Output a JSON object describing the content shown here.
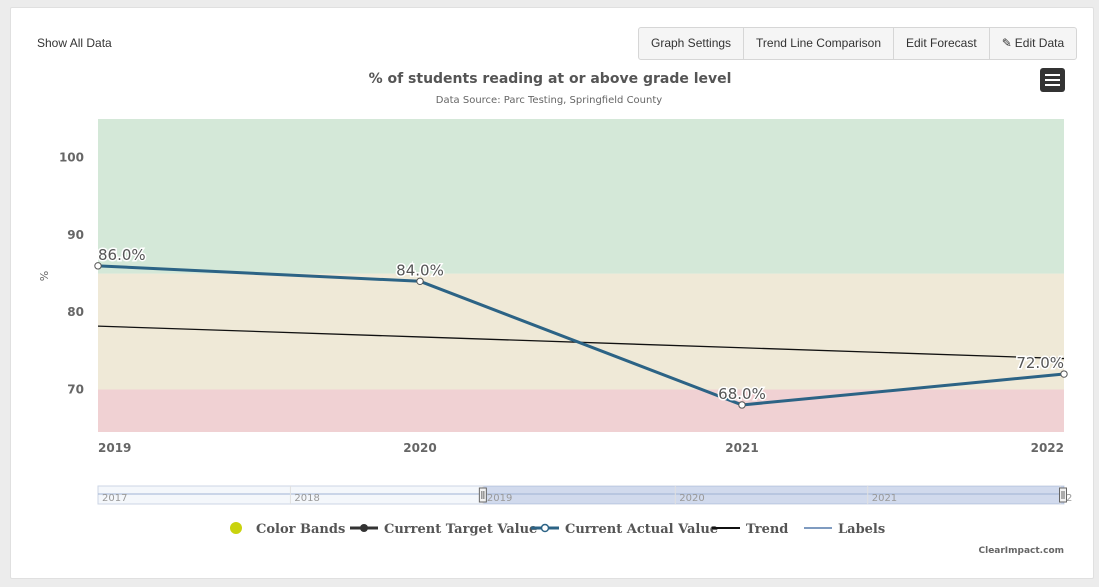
{
  "toolbar": {
    "show_all": "Show All Data",
    "buttons": [
      "Graph Settings",
      "Trend Line Comparison",
      "Edit Forecast",
      "Edit Data"
    ]
  },
  "chart_data": {
    "type": "line",
    "title": "% of students reading at or above grade level",
    "subtitle": "Data Source: Parc Testing, Springfield County",
    "ylabel": "%",
    "xlabel": "",
    "ylim": [
      64.5,
      105
    ],
    "y_ticks": [
      70,
      80,
      90,
      100
    ],
    "x": [
      "2019",
      "2020",
      "2021",
      "2022"
    ],
    "color_bands": [
      {
        "from": 64.5,
        "to": 70,
        "color": "#f0d1d3"
      },
      {
        "from": 70,
        "to": 85,
        "color": "#efe9d7"
      },
      {
        "from": 85,
        "to": 105,
        "color": "#d4e8d8"
      }
    ],
    "series": [
      {
        "name": "Current Actual Value",
        "values": [
          86.0,
          84.0,
          68.0,
          72.0
        ],
        "labels": [
          "86.0%",
          "84.0%",
          "68.0%",
          "72.0%"
        ],
        "color": "#2c6385"
      },
      {
        "name": "Trend",
        "values": [
          78.2,
          76.8,
          75.4,
          74.0
        ],
        "color": "#111111"
      }
    ],
    "navigator_ticks": [
      "2017",
      "2018",
      "2019",
      "2020",
      "2021",
      "2022"
    ],
    "navigator_selected": [
      "2019",
      "2022"
    ],
    "legend": [
      {
        "name": "Color Bands",
        "symbol": "dot",
        "color": "#c9d30e"
      },
      {
        "name": "Current Target Value",
        "symbol": "line-dot",
        "color": "#333333"
      },
      {
        "name": "Current Actual Value",
        "symbol": "line-circle",
        "color": "#2c6385"
      },
      {
        "name": "Trend",
        "symbol": "line",
        "color": "#111111"
      },
      {
        "name": "Labels",
        "symbol": "line",
        "color": "#7f9bc0"
      }
    ]
  },
  "credit": "ClearImpact.com",
  "menu_icon": "hamburger-icon"
}
